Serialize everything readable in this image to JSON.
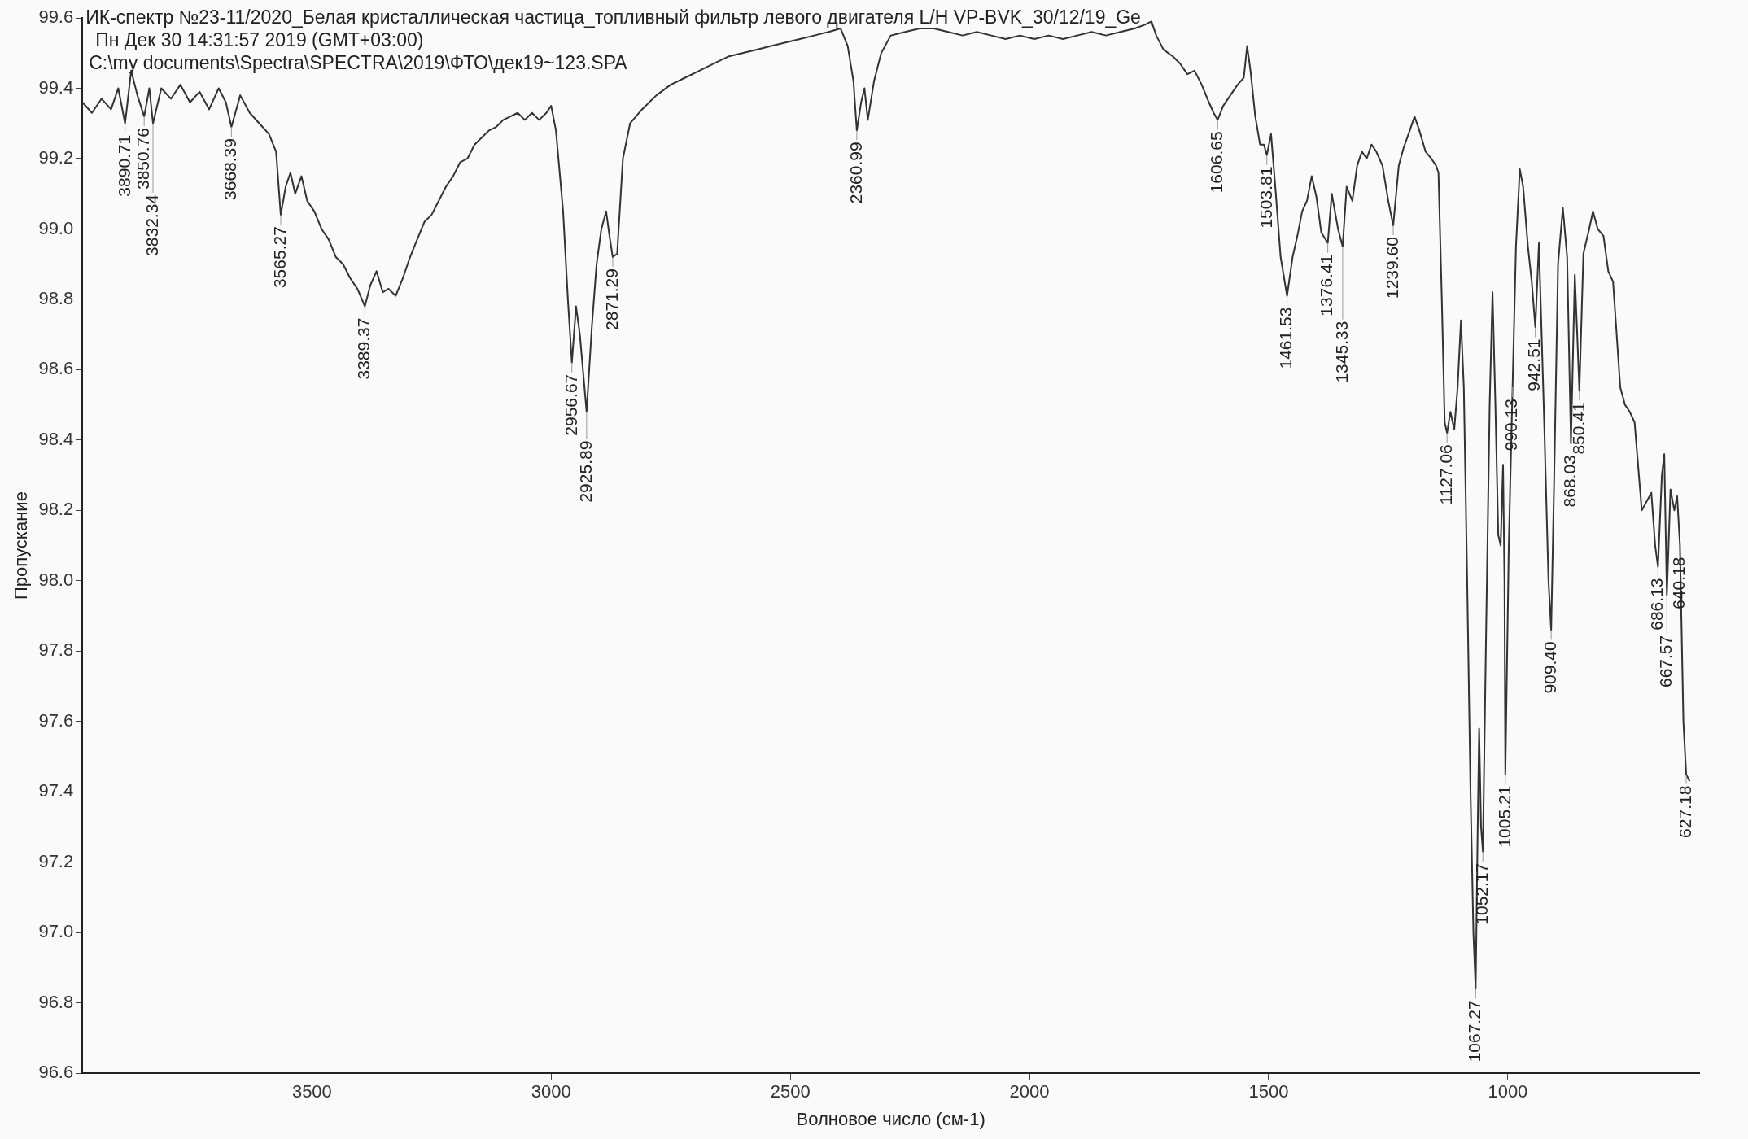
{
  "chart_data": {
    "type": "line",
    "title": "ИК-спектр №23-11/2020_Белая кристаллическая частица_топливный фильтр левого двигателя L/H VP-BVK_30/12/19_Ge",
    "subtitle": "Пн Дек 30 14:31:57 2019 (GMT+03:00)",
    "xlabel": "Волновое число (см-1)",
    "ylabel": "Пропускание",
    "x": [
      3980,
      3960,
      3940,
      3920,
      3905,
      3890.71,
      3878,
      3865,
      3850.76,
      3840,
      3832.34,
      3815,
      3795,
      3775,
      3755,
      3735,
      3715,
      3695,
      3680,
      3668.39,
      3650,
      3630,
      3610,
      3590,
      3575,
      3565.27,
      3555,
      3545,
      3535,
      3522,
      3510,
      3495,
      3480,
      3465,
      3450,
      3435,
      3420,
      3405,
      3389.37,
      3378,
      3365,
      3352,
      3340,
      3325,
      3310,
      3295,
      3280,
      3265,
      3250,
      3235,
      3220,
      3205,
      3190,
      3175,
      3160,
      3145,
      3130,
      3115,
      3100,
      3085,
      3070,
      3055,
      3040,
      3025,
      3010,
      3000,
      2990,
      2975,
      2965,
      2956.67,
      2948,
      2940,
      2925.89,
      2915,
      2905,
      2895,
      2885,
      2878,
      2871.29,
      2862,
      2850,
      2835,
      2810,
      2780,
      2750,
      2720,
      2690,
      2660,
      2630,
      2600,
      2570,
      2540,
      2510,
      2480,
      2450,
      2420,
      2395,
      2380,
      2368,
      2360.99,
      2352,
      2345,
      2338,
      2325,
      2310,
      2290,
      2260,
      2230,
      2200,
      2170,
      2140,
      2110,
      2080,
      2050,
      2020,
      1990,
      1960,
      1930,
      1900,
      1870,
      1840,
      1810,
      1780,
      1760,
      1745,
      1735,
      1720,
      1700,
      1685,
      1670,
      1655,
      1640,
      1625,
      1615,
      1606.65,
      1595,
      1580,
      1565,
      1552,
      1545,
      1538,
      1528,
      1518,
      1510,
      1503.81,
      1495,
      1485,
      1475,
      1461.53,
      1450,
      1440,
      1430,
      1420,
      1410,
      1400,
      1390,
      1376.41,
      1368,
      1355,
      1345.33,
      1337,
      1325,
      1315,
      1305,
      1295,
      1285,
      1275,
      1262,
      1250,
      1239.6,
      1228,
      1218,
      1205,
      1195,
      1185,
      1172,
      1160,
      1150,
      1145,
      1138,
      1132,
      1127.06,
      1120,
      1112,
      1105,
      1098,
      1092,
      1085,
      1078,
      1072,
      1067.27,
      1063,
      1060,
      1056,
      1052.17,
      1046,
      1038,
      1032,
      1026,
      1020,
      1015,
      1010,
      1007,
      1005.21,
      998,
      990.13,
      983,
      975,
      968,
      958,
      950,
      942.51,
      935,
      925,
      915,
      909.4,
      903,
      895,
      885,
      876,
      868.03,
      860,
      855,
      850.41,
      842,
      830,
      822,
      812,
      800,
      790,
      780,
      765,
      755,
      745,
      735,
      720,
      700,
      692,
      686.13,
      678,
      673,
      667.57,
      660,
      652,
      646,
      640.18,
      633,
      627.18,
      620
    ],
    "series": [
      {
        "color": "#333333",
        "values": [
          99.36,
          99.33,
          99.37,
          99.34,
          99.4,
          99.3,
          99.45,
          99.38,
          99.32,
          99.4,
          99.3,
          99.4,
          99.37,
          99.41,
          99.36,
          99.39,
          99.34,
          99.4,
          99.36,
          99.29,
          99.38,
          99.33,
          99.3,
          99.27,
          99.22,
          99.04,
          99.12,
          99.16,
          99.1,
          99.15,
          99.08,
          99.05,
          99,
          98.97,
          98.92,
          98.9,
          98.86,
          98.83,
          98.78,
          98.84,
          98.88,
          98.82,
          98.83,
          98.81,
          98.86,
          98.92,
          98.97,
          99.02,
          99.04,
          99.08,
          99.12,
          99.15,
          99.19,
          99.2,
          99.24,
          99.26,
          99.28,
          99.29,
          99.31,
          99.32,
          99.33,
          99.31,
          99.33,
          99.31,
          99.33,
          99.35,
          99.28,
          99.05,
          98.8,
          98.62,
          98.78,
          98.7,
          98.48,
          98.72,
          98.9,
          99,
          99.05,
          98.98,
          98.92,
          98.93,
          99.2,
          99.3,
          99.34,
          99.38,
          99.41,
          99.43,
          99.45,
          99.47,
          99.49,
          99.5,
          99.51,
          99.52,
          99.53,
          99.54,
          99.55,
          99.56,
          99.57,
          99.52,
          99.42,
          99.28,
          99.36,
          99.4,
          99.31,
          99.42,
          99.5,
          99.55,
          99.56,
          99.57,
          99.57,
          99.56,
          99.55,
          99.56,
          99.55,
          99.54,
          99.55,
          99.54,
          99.55,
          99.54,
          99.55,
          99.56,
          99.55,
          99.56,
          99.57,
          99.58,
          99.59,
          99.55,
          99.51,
          99.49,
          99.47,
          99.44,
          99.45,
          99.41,
          99.36,
          99.33,
          99.31,
          99.35,
          99.38,
          99.41,
          99.43,
          99.52,
          99.45,
          99.32,
          99.24,
          99.24,
          99.21,
          99.27,
          99.1,
          98.92,
          98.81,
          98.92,
          98.98,
          99.05,
          99.08,
          99.15,
          99.09,
          98.99,
          98.96,
          99.1,
          99,
          98.95,
          99.12,
          99.08,
          99.18,
          99.22,
          99.2,
          99.24,
          99.22,
          99.18,
          99.08,
          99.01,
          99.18,
          99.23,
          99.28,
          99.32,
          99.28,
          99.22,
          99.2,
          99.18,
          99.16,
          98.8,
          98.45,
          98.42,
          98.48,
          98.43,
          98.55,
          98.74,
          98.55,
          98,
          97.4,
          97,
          96.84,
          97.3,
          97.58,
          97.3,
          97.23,
          97.8,
          98.5,
          98.82,
          98.5,
          98.13,
          98.1,
          98.33,
          98,
          97.45,
          98.1,
          98.55,
          98.95,
          99.17,
          99.12,
          98.95,
          98.85,
          98.72,
          98.96,
          98.5,
          98,
          97.86,
          98.3,
          98.9,
          99.06,
          98.92,
          98.39,
          98.87,
          98.7,
          98.54,
          98.93,
          99,
          99.05,
          99,
          98.98,
          98.88,
          98.85,
          98.55,
          98.5,
          98.48,
          98.45,
          98.2,
          98.25,
          98.1,
          98.04,
          98.3,
          98.36,
          97.96,
          98.26,
          98.2,
          98.24,
          98.1,
          97.6,
          97.45,
          97.43
        ]
      }
    ],
    "xlim": [
      3980,
      600
    ],
    "xticks": [
      3500,
      3000,
      2500,
      2000,
      1500,
      1000
    ],
    "ylim": [
      96.6,
      99.6
    ],
    "yticks": [
      96.6,
      96.8,
      {
        "value": 97,
        "label": "97.0"
      },
      97.2,
      97.4,
      97.6,
      97.8,
      {
        "value": 98,
        "label": "98.0"
      },
      98.2,
      98.4,
      98.6,
      98.8,
      {
        "value": 99,
        "label": "99.0"
      },
      99.2,
      99.4,
      99.6
    ],
    "legend": false,
    "grid": false,
    "marker": "none",
    "line_style": "solid",
    "annotations": [
      "C:\\my documents\\Spectra\\SPECTRA\\2019\\ФТО\\дек19~123.SPA",
      {
        "text": "3890.71",
        "x": 3890.71,
        "y": 99.3
      },
      {
        "text": "3850.76",
        "x": 3850.76,
        "y": 99.32
      },
      {
        "text": "3832.34",
        "x": 3832.34,
        "y": 99.3
      },
      {
        "text": "3668.39",
        "x": 3668.39,
        "y": 99.29
      },
      {
        "text": "3565.27",
        "x": 3565.27,
        "y": 99.04
      },
      {
        "text": "3389.37",
        "x": 3389.37,
        "y": 98.78
      },
      {
        "text": "2956.67",
        "x": 2956.67,
        "y": 98.62
      },
      {
        "text": "2925.89",
        "x": 2925.89,
        "y": 98.48
      },
      {
        "text": "2871.29",
        "x": 2871.29,
        "y": 98.92
      },
      {
        "text": "2360.99",
        "x": 2360.99,
        "y": 99.28
      },
      {
        "text": "1606.65",
        "x": 1606.65,
        "y": 99.31
      },
      {
        "text": "1503.81",
        "x": 1503.81,
        "y": 99.21
      },
      {
        "text": "1461.53",
        "x": 1461.53,
        "y": 98.81
      },
      {
        "text": "1376.41",
        "x": 1376.41,
        "y": 98.96
      },
      {
        "text": "1345.33",
        "x": 1345.33,
        "y": 98.95
      },
      {
        "text": "1239.60",
        "x": 1239.6,
        "y": 99.01
      },
      {
        "text": "1127.06",
        "x": 1127.06,
        "y": 98.42
      },
      {
        "text": "1067.27",
        "x": 1067.27,
        "y": 96.84
      },
      {
        "text": "1052.17",
        "x": 1052.17,
        "y": 97.23
      },
      {
        "text": "1005.21",
        "x": 1005.21,
        "y": 97.45
      },
      {
        "text": "990.13",
        "x": 990.13,
        "y": 98.55
      },
      {
        "text": "942.51",
        "x": 942.51,
        "y": 98.72
      },
      {
        "text": "909.40",
        "x": 909.4,
        "y": 97.86
      },
      {
        "text": "868.03",
        "x": 868.03,
        "y": 98.39
      },
      {
        "text": "850.41",
        "x": 850.41,
        "y": 98.54
      },
      {
        "text": "686.13",
        "x": 686.13,
        "y": 98.04
      },
      {
        "text": "667.57",
        "x": 667.57,
        "y": 97.96
      },
      {
        "text": "640.18",
        "x": 640.18,
        "y": 98.1
      },
      {
        "text": "627.18",
        "x": 627.18,
        "y": 97.45
      }
    ]
  }
}
